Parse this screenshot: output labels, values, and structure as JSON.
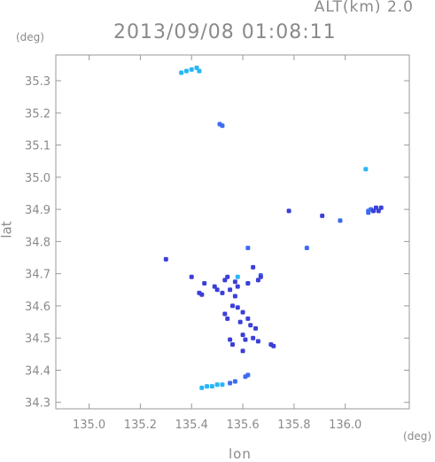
{
  "header": {
    "altitude": "ALT(km) 2.0",
    "timestamp": "2013/09/08 01:08:11"
  },
  "chart_data": {
    "type": "scatter",
    "title": "2013/09/08 01:08:11",
    "xlabel": "lon",
    "ylabel": "lat",
    "xunit": "(deg)",
    "yunit": "(deg)",
    "xlim": [
      134.87,
      136.25
    ],
    "ylim": [
      34.28,
      35.38
    ],
    "xticks": [
      "135.0",
      "135.2",
      "135.4",
      "135.6",
      "135.8",
      "136.0"
    ],
    "yticks": [
      "34.3",
      "34.4",
      "34.5",
      "34.6",
      "34.7",
      "34.8",
      "34.9",
      "35.0",
      "35.1",
      "35.2",
      "35.3"
    ],
    "grid": false,
    "colors": {
      "light": "#29b6f6",
      "medium": "#3d6bf0",
      "dark": "#3b3fd8"
    },
    "series": [
      {
        "color": "light",
        "points": [
          [
            135.36,
            35.325
          ],
          [
            135.38,
            35.33
          ],
          [
            135.4,
            35.335
          ],
          [
            135.42,
            35.34
          ],
          [
            135.43,
            35.33
          ],
          [
            135.44,
            34.345
          ],
          [
            135.46,
            34.35
          ],
          [
            135.48,
            34.35
          ],
          [
            135.5,
            34.355
          ],
          [
            135.52,
            34.355
          ],
          [
            136.08,
            35.025
          ],
          [
            135.62,
            34.67
          ],
          [
            135.58,
            34.69
          ]
        ]
      },
      {
        "color": "medium",
        "points": [
          [
            135.51,
            35.165
          ],
          [
            135.52,
            35.16
          ],
          [
            136.09,
            34.89
          ],
          [
            136.1,
            34.9
          ],
          [
            136.09,
            34.895
          ],
          [
            135.55,
            34.36
          ],
          [
            135.57,
            34.365
          ],
          [
            135.61,
            34.38
          ],
          [
            135.62,
            34.385
          ],
          [
            135.98,
            34.865
          ],
          [
            135.85,
            34.78
          ],
          [
            135.62,
            34.78
          ],
          [
            135.67,
            34.695
          ]
        ]
      },
      {
        "color": "dark",
        "points": [
          [
            136.12,
            34.905
          ],
          [
            136.14,
            34.905
          ],
          [
            136.13,
            34.895
          ],
          [
            136.11,
            34.895
          ],
          [
            135.54,
            34.69
          ],
          [
            135.53,
            34.68
          ],
          [
            135.52,
            34.64
          ],
          [
            135.55,
            34.65
          ],
          [
            135.57,
            34.63
          ],
          [
            135.56,
            34.6
          ],
          [
            135.58,
            34.595
          ],
          [
            135.6,
            34.58
          ],
          [
            135.62,
            34.56
          ],
          [
            135.53,
            34.575
          ],
          [
            135.54,
            34.56
          ],
          [
            135.59,
            34.55
          ],
          [
            135.63,
            34.54
          ],
          [
            135.65,
            34.53
          ],
          [
            135.64,
            34.5
          ],
          [
            135.6,
            34.51
          ],
          [
            135.61,
            34.495
          ],
          [
            135.55,
            34.495
          ],
          [
            135.56,
            34.48
          ],
          [
            135.66,
            34.49
          ],
          [
            135.71,
            34.48
          ],
          [
            135.72,
            34.475
          ],
          [
            135.67,
            34.69
          ],
          [
            135.66,
            34.68
          ],
          [
            135.62,
            34.67
          ],
          [
            135.58,
            34.66
          ],
          [
            135.44,
            34.635
          ],
          [
            135.43,
            34.64
          ],
          [
            135.4,
            34.69
          ],
          [
            135.3,
            34.745
          ],
          [
            135.78,
            34.895
          ],
          [
            135.91,
            34.88
          ],
          [
            135.64,
            34.72
          ],
          [
            135.45,
            34.67
          ],
          [
            135.5,
            34.65
          ],
          [
            135.49,
            34.66
          ],
          [
            135.57,
            34.675
          ],
          [
            135.6,
            34.46
          ]
        ]
      }
    ]
  }
}
